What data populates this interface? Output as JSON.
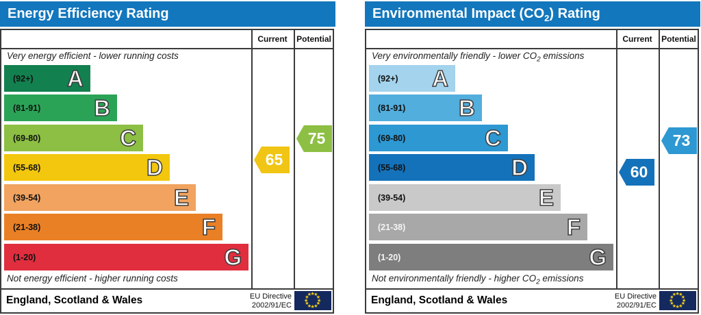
{
  "header_color": "#1377bd",
  "border_color": "#3a3a3a",
  "eu_flag": {
    "bg": "#14295e",
    "star_color": "#f7d117"
  },
  "charts": [
    {
      "id": "energy-efficiency",
      "title": {
        "prefix": "Energy Efficiency Rating",
        "sub": "",
        "suffix": ""
      },
      "columns": {
        "current": "Current",
        "potential": "Potential"
      },
      "top_caption": {
        "prefix": "Very energy efficient - lower running costs",
        "sub": "",
        "suffix": ""
      },
      "bottom_caption": {
        "prefix": "Not energy efficient - higher running costs",
        "sub": "",
        "suffix": ""
      },
      "bands": [
        {
          "range": "(92+)",
          "letter": "A",
          "color": "#12804f",
          "label_color": "#111111"
        },
        {
          "range": "(81-91)",
          "letter": "B",
          "color": "#2ba357",
          "label_color": "#111111"
        },
        {
          "range": "(69-80)",
          "letter": "C",
          "color": "#8cbf43",
          "label_color": "#111111"
        },
        {
          "range": "(55-68)",
          "letter": "D",
          "color": "#f2c70d",
          "label_color": "#111111"
        },
        {
          "range": "(39-54)",
          "letter": "E",
          "color": "#f1a35f",
          "label_color": "#111111"
        },
        {
          "range": "(21-38)",
          "letter": "F",
          "color": "#ea8025",
          "label_color": "#111111"
        },
        {
          "range": "(1-20)",
          "letter": "G",
          "color": "#e02e3e",
          "label_color": "#111111"
        }
      ],
      "current": {
        "value": "65",
        "color": "#f0c514"
      },
      "potential": {
        "value": "75",
        "color": "#8cbf43"
      },
      "footer": {
        "region": "England, Scotland & Wales",
        "directive_line1": "EU Directive",
        "directive_line2": "2002/91/EC"
      }
    },
    {
      "id": "environmental-impact",
      "title": {
        "prefix": "Environmental Impact (CO",
        "sub": "2",
        "suffix": ") Rating"
      },
      "columns": {
        "current": "Current",
        "potential": "Potential"
      },
      "top_caption": {
        "prefix": "Very environmentally friendly - lower CO",
        "sub": "2",
        "suffix": " emissions"
      },
      "bottom_caption": {
        "prefix": "Not environmentally friendly - higher CO",
        "sub": "2",
        "suffix": " emissions"
      },
      "bands": [
        {
          "range": "(92+)",
          "letter": "A",
          "color": "#a3d3ed",
          "label_color": "#111111"
        },
        {
          "range": "(81-91)",
          "letter": "B",
          "color": "#52aedd",
          "label_color": "#111111"
        },
        {
          "range": "(69-80)",
          "letter": "C",
          "color": "#2d98d2",
          "label_color": "#111111"
        },
        {
          "range": "(55-68)",
          "letter": "D",
          "color": "#1472ba",
          "label_color": "#111111"
        },
        {
          "range": "(39-54)",
          "letter": "E",
          "color": "#c9c9c9",
          "label_color": "#111111"
        },
        {
          "range": "(21-38)",
          "letter": "F",
          "color": "#a8a8a8",
          "label_color": "#f5f5f5"
        },
        {
          "range": "(1-20)",
          "letter": "G",
          "color": "#7e7e7e",
          "label_color": "#f5f5f5"
        }
      ],
      "current": {
        "value": "60",
        "color": "#1472ba"
      },
      "potential": {
        "value": "73",
        "color": "#2d98d2"
      },
      "footer": {
        "region": "England, Scotland & Wales",
        "directive_line1": "EU Directive",
        "directive_line2": "2002/91/EC"
      }
    }
  ],
  "chart_data": [
    {
      "type": "bar",
      "title": "Energy Efficiency Rating",
      "categories": [
        "A (92+)",
        "B (81-91)",
        "C (69-80)",
        "D (55-68)",
        "E (39-54)",
        "F (21-38)",
        "G (1-20)"
      ],
      "series": [
        {
          "name": "Current",
          "values": [
            65
          ],
          "band": "D"
        },
        {
          "name": "Potential",
          "values": [
            75
          ],
          "band": "C"
        }
      ],
      "annotation_top": "Very energy efficient - lower running costs",
      "annotation_bottom": "Not energy efficient - higher running costs",
      "region": "England, Scotland & Wales",
      "directive": "EU Directive 2002/91/EC",
      "legend_position": "top-right-columns",
      "grid": false
    },
    {
      "type": "bar",
      "title": "Environmental Impact (CO2) Rating",
      "categories": [
        "A (92+)",
        "B (81-91)",
        "C (69-80)",
        "D (55-68)",
        "E (39-54)",
        "F (21-38)",
        "G (1-20)"
      ],
      "series": [
        {
          "name": "Current",
          "values": [
            60
          ],
          "band": "D"
        },
        {
          "name": "Potential",
          "values": [
            73
          ],
          "band": "C"
        }
      ],
      "annotation_top": "Very environmentally friendly - lower CO2 emissions",
      "annotation_bottom": "Not environmentally friendly - higher CO2 emissions",
      "region": "England, Scotland & Wales",
      "directive": "EU Directive 2002/91/EC",
      "legend_position": "top-right-columns",
      "grid": false
    }
  ]
}
